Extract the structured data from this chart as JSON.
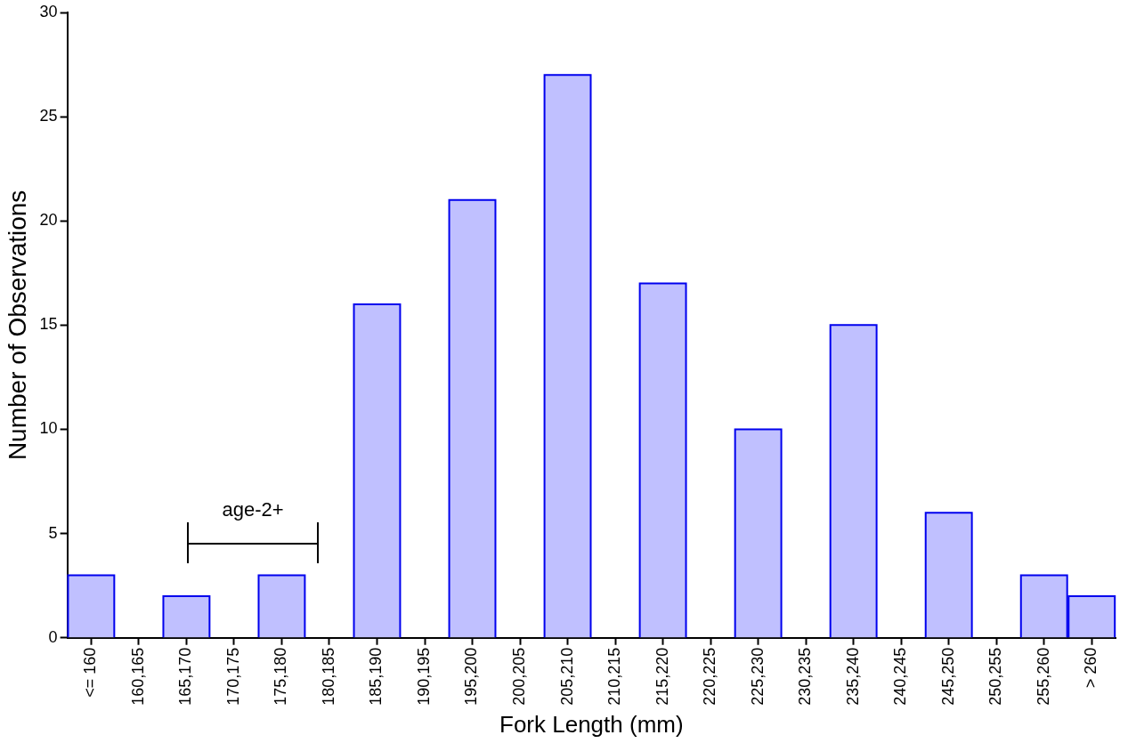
{
  "chart_data": {
    "type": "bar",
    "xlabel": "Fork Length (mm)",
    "ylabel": "Number of Observations",
    "categories": [
      "<= 160",
      "160,165",
      "165,170",
      "170,175",
      "175,180",
      "180,185",
      "185,190",
      "190,195",
      "195,200",
      "200,205",
      "205,210",
      "210,215",
      "215,220",
      "220,225",
      "225,230",
      "230,235",
      "235,240",
      "240,245",
      "245,250",
      "250,255",
      "255,260",
      "> 260"
    ],
    "values": [
      3,
      0,
      2,
      0,
      3,
      0,
      16,
      0,
      21,
      0,
      27,
      0,
      17,
      0,
      10,
      0,
      15,
      0,
      6,
      0,
      3,
      2
    ],
    "color": "#c0c0ff",
    "ylim": [
      0,
      30
    ],
    "yticks": [
      0,
      5,
      10,
      15,
      20,
      25,
      30
    ],
    "grid": false,
    "legend": false,
    "annotations": [
      "age-2+"
    ]
  }
}
